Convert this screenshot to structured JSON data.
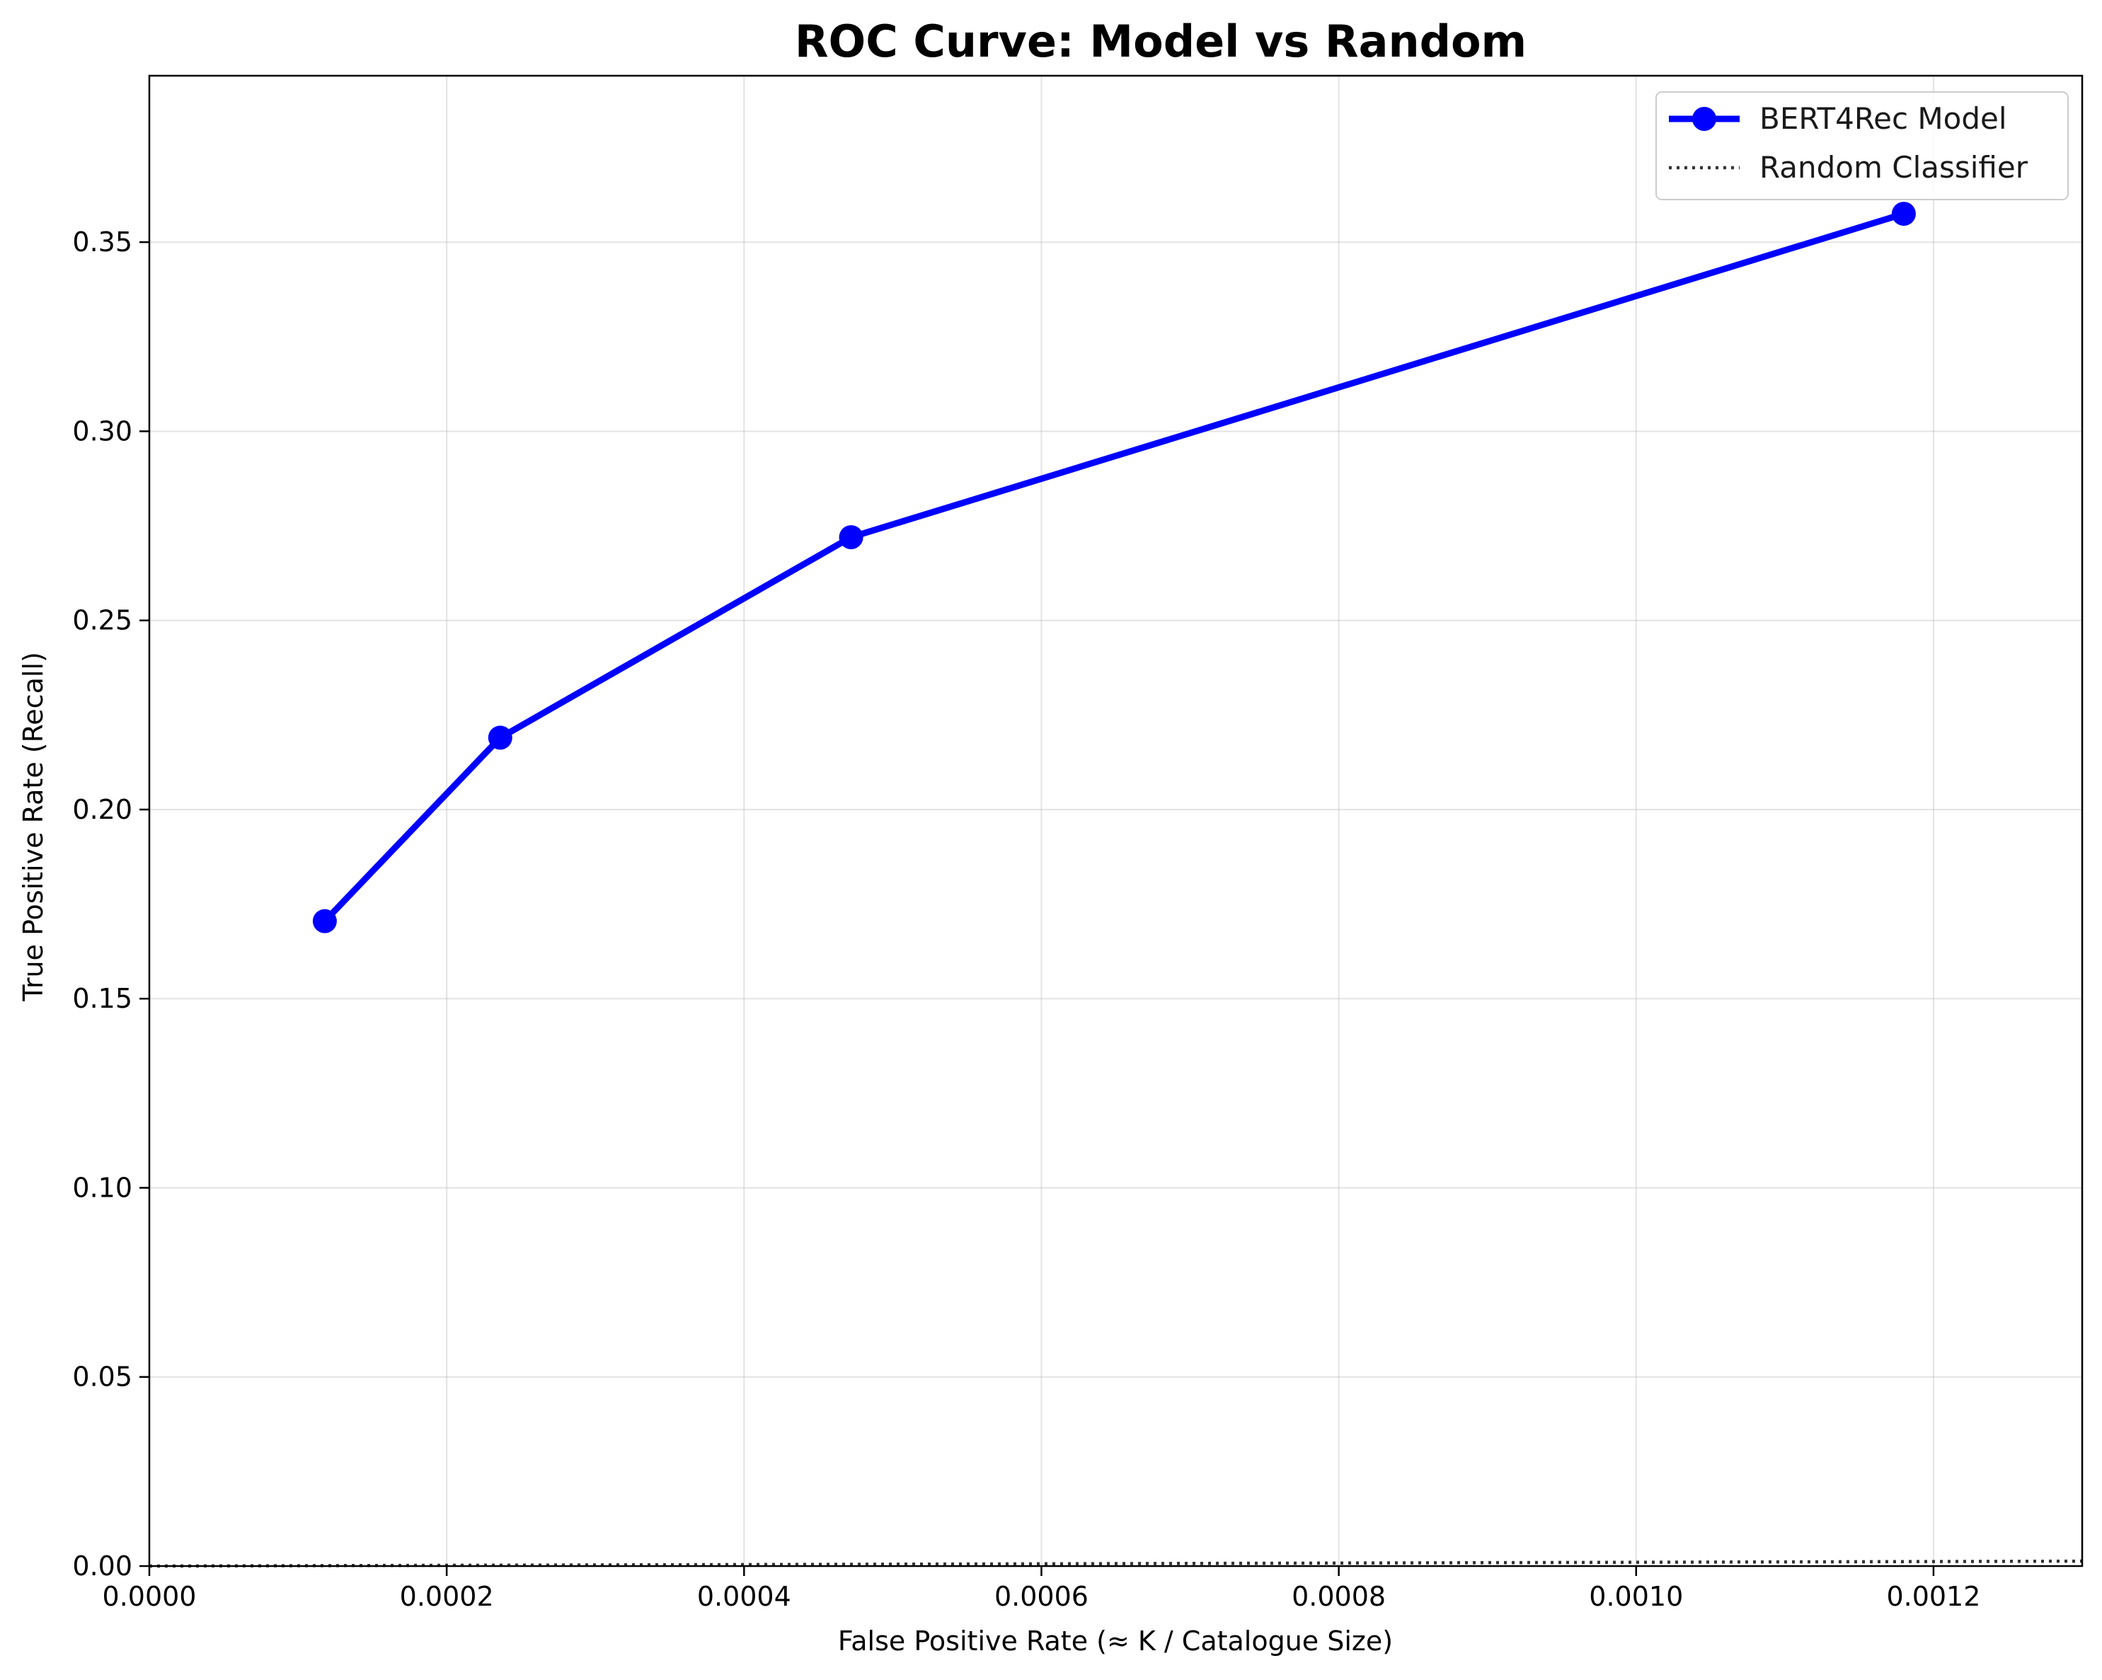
{
  "chart_data": {
    "type": "line",
    "title": "ROC Curve: Model vs Random",
    "xlabel": "False Positive Rate (≈ K / Catalogue Size)",
    "ylabel": "True Positive Rate (Recall)",
    "xlim": [
      0,
      0.0013
    ],
    "ylim": [
      0,
      0.394
    ],
    "xticks": [
      0,
      0.0002,
      0.0004,
      0.0006,
      0.0008,
      0.001,
      0.0012
    ],
    "xtick_labels": [
      "0.0000",
      "0.0002",
      "0.0004",
      "0.0006",
      "0.0008",
      "0.0010",
      "0.0012"
    ],
    "yticks": [
      0,
      0.05,
      0.1,
      0.15,
      0.2,
      0.25,
      0.3,
      0.35
    ],
    "ytick_labels": [
      "0.00",
      "0.05",
      "0.10",
      "0.15",
      "0.20",
      "0.25",
      "0.30",
      "0.35"
    ],
    "grid": true,
    "legend_position": "top-right",
    "series": [
      {
        "name": "BERT4Rec Model",
        "style": "solid-with-markers",
        "color": "#0000ff",
        "x": [
          0.000118,
          0.000236,
          0.000472,
          0.00118
        ],
        "y": [
          0.1705,
          0.219,
          0.272,
          0.3575
        ]
      },
      {
        "name": "Random Classifier",
        "style": "dotted",
        "color": "#000000",
        "x": [
          0,
          0.0013
        ],
        "y": [
          0,
          0.0013
        ]
      }
    ]
  }
}
